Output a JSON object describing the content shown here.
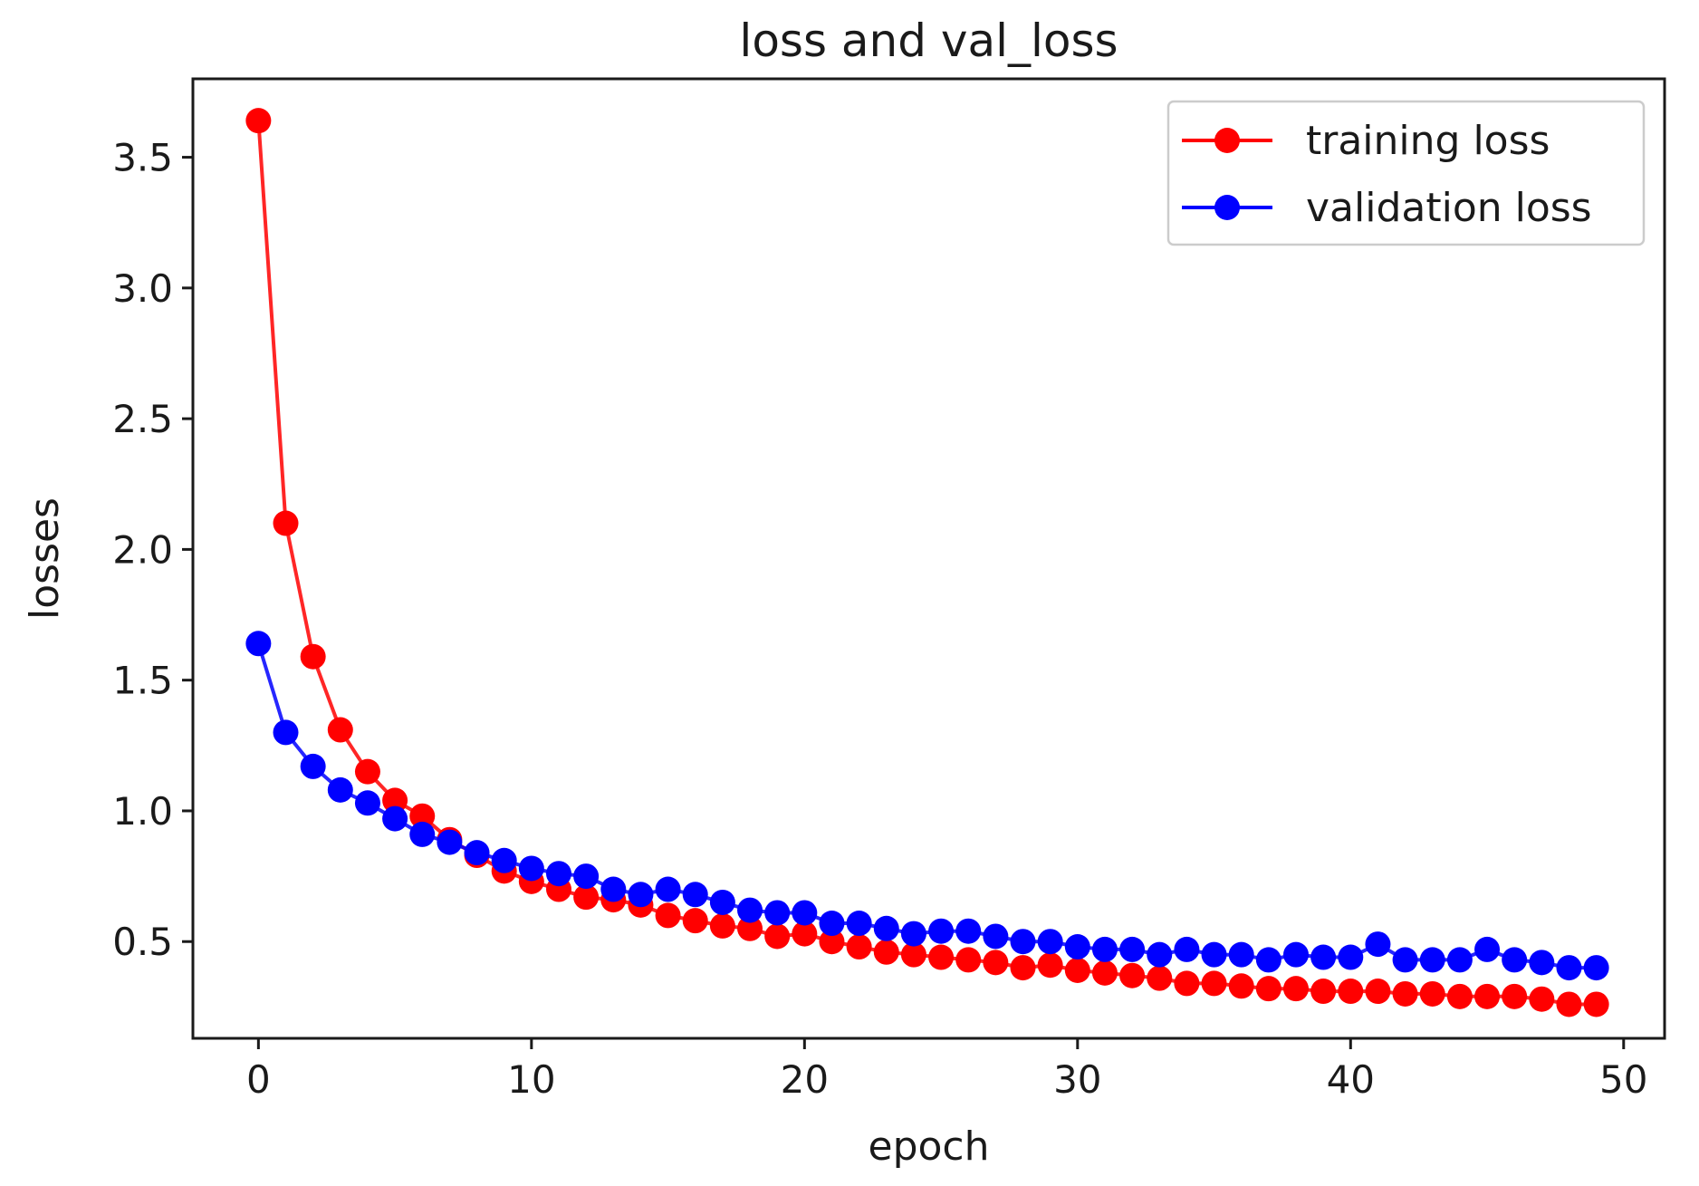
{
  "chart_data": {
    "type": "line",
    "title": "loss and val_loss",
    "xlabel": "epoch",
    "ylabel": "losses",
    "xlim": [
      -2.4,
      51.5
    ],
    "ylim": [
      0.13,
      3.8
    ],
    "xticks": [
      0,
      10,
      20,
      30,
      40,
      50
    ],
    "yticks": [
      0.5,
      1.0,
      1.5,
      2.0,
      2.5,
      3.0,
      3.5
    ],
    "x_tick_labels": [
      "0",
      "10",
      "20",
      "30",
      "40",
      "50"
    ],
    "y_tick_labels": [
      "0.5",
      "1.0",
      "1.5",
      "2.0",
      "2.5",
      "3.0",
      "3.5"
    ],
    "grid": false,
    "legend_position": "top-right",
    "x": [
      0,
      1,
      2,
      3,
      4,
      5,
      6,
      7,
      8,
      9,
      10,
      11,
      12,
      13,
      14,
      15,
      16,
      17,
      18,
      19,
      20,
      21,
      22,
      23,
      24,
      25,
      26,
      27,
      28,
      29,
      30,
      31,
      32,
      33,
      34,
      35,
      36,
      37,
      38,
      39,
      40,
      41,
      42,
      43,
      44,
      45,
      46,
      47,
      48,
      49
    ],
    "series": [
      {
        "name": "training loss",
        "color": "#ff0000",
        "values": [
          3.64,
          2.1,
          1.59,
          1.31,
          1.15,
          1.04,
          0.98,
          0.89,
          0.83,
          0.77,
          0.73,
          0.7,
          0.67,
          0.66,
          0.64,
          0.6,
          0.58,
          0.56,
          0.55,
          0.52,
          0.53,
          0.5,
          0.48,
          0.46,
          0.45,
          0.44,
          0.43,
          0.42,
          0.4,
          0.41,
          0.39,
          0.38,
          0.37,
          0.36,
          0.34,
          0.34,
          0.33,
          0.32,
          0.32,
          0.31,
          0.31,
          0.31,
          0.3,
          0.3,
          0.29,
          0.29,
          0.29,
          0.28,
          0.26,
          0.26
        ]
      },
      {
        "name": "validation loss",
        "color": "#0000ff",
        "values": [
          1.64,
          1.3,
          1.17,
          1.08,
          1.03,
          0.97,
          0.91,
          0.88,
          0.84,
          0.81,
          0.78,
          0.76,
          0.75,
          0.7,
          0.68,
          0.7,
          0.68,
          0.65,
          0.62,
          0.61,
          0.61,
          0.57,
          0.57,
          0.55,
          0.53,
          0.54,
          0.54,
          0.52,
          0.5,
          0.5,
          0.48,
          0.47,
          0.47,
          0.45,
          0.47,
          0.45,
          0.45,
          0.43,
          0.45,
          0.44,
          0.44,
          0.49,
          0.43,
          0.43,
          0.43,
          0.47,
          0.43,
          0.42,
          0.4,
          0.4
        ]
      }
    ]
  }
}
